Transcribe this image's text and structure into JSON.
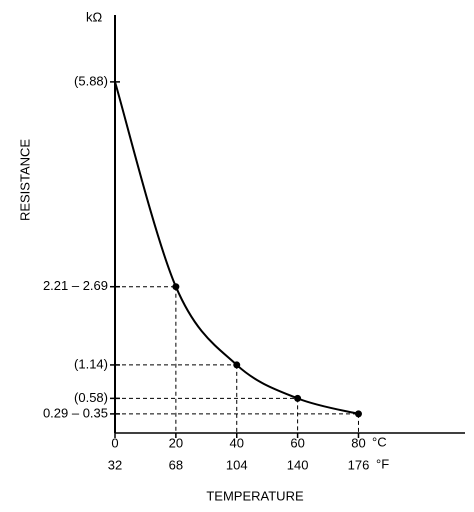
{
  "chart_data": {
    "type": "line",
    "y_unit": "kΩ",
    "ylabel": "RESISTANCE",
    "xlabel": "TEMPERATURE",
    "x_unit": "°C",
    "x2_unit": "°F",
    "x": [
      0,
      20,
      40,
      60,
      80
    ],
    "series": [
      {
        "name": "Resistance",
        "color": "#000000",
        "values": [
          5.88,
          2.45,
          1.14,
          0.58,
          0.32
        ]
      }
    ],
    "xlim": [
      0,
      115
    ],
    "xticks": [
      0,
      20,
      40,
      60,
      80
    ],
    "x2ticks": [
      32,
      68,
      104,
      140,
      176
    ],
    "ylim": [
      0,
      7
    ],
    "yticks": [
      {
        "value": 5.88,
        "label": "(5.88)"
      },
      {
        "value": 2.45,
        "label": "2.21 – 2.69"
      },
      {
        "value": 1.14,
        "label": "(1.14)"
      },
      {
        "value": 0.58,
        "label": "(0.58)"
      },
      {
        "value": 0.32,
        "label": "0.29 – 0.35"
      }
    ],
    "grid": false
  }
}
